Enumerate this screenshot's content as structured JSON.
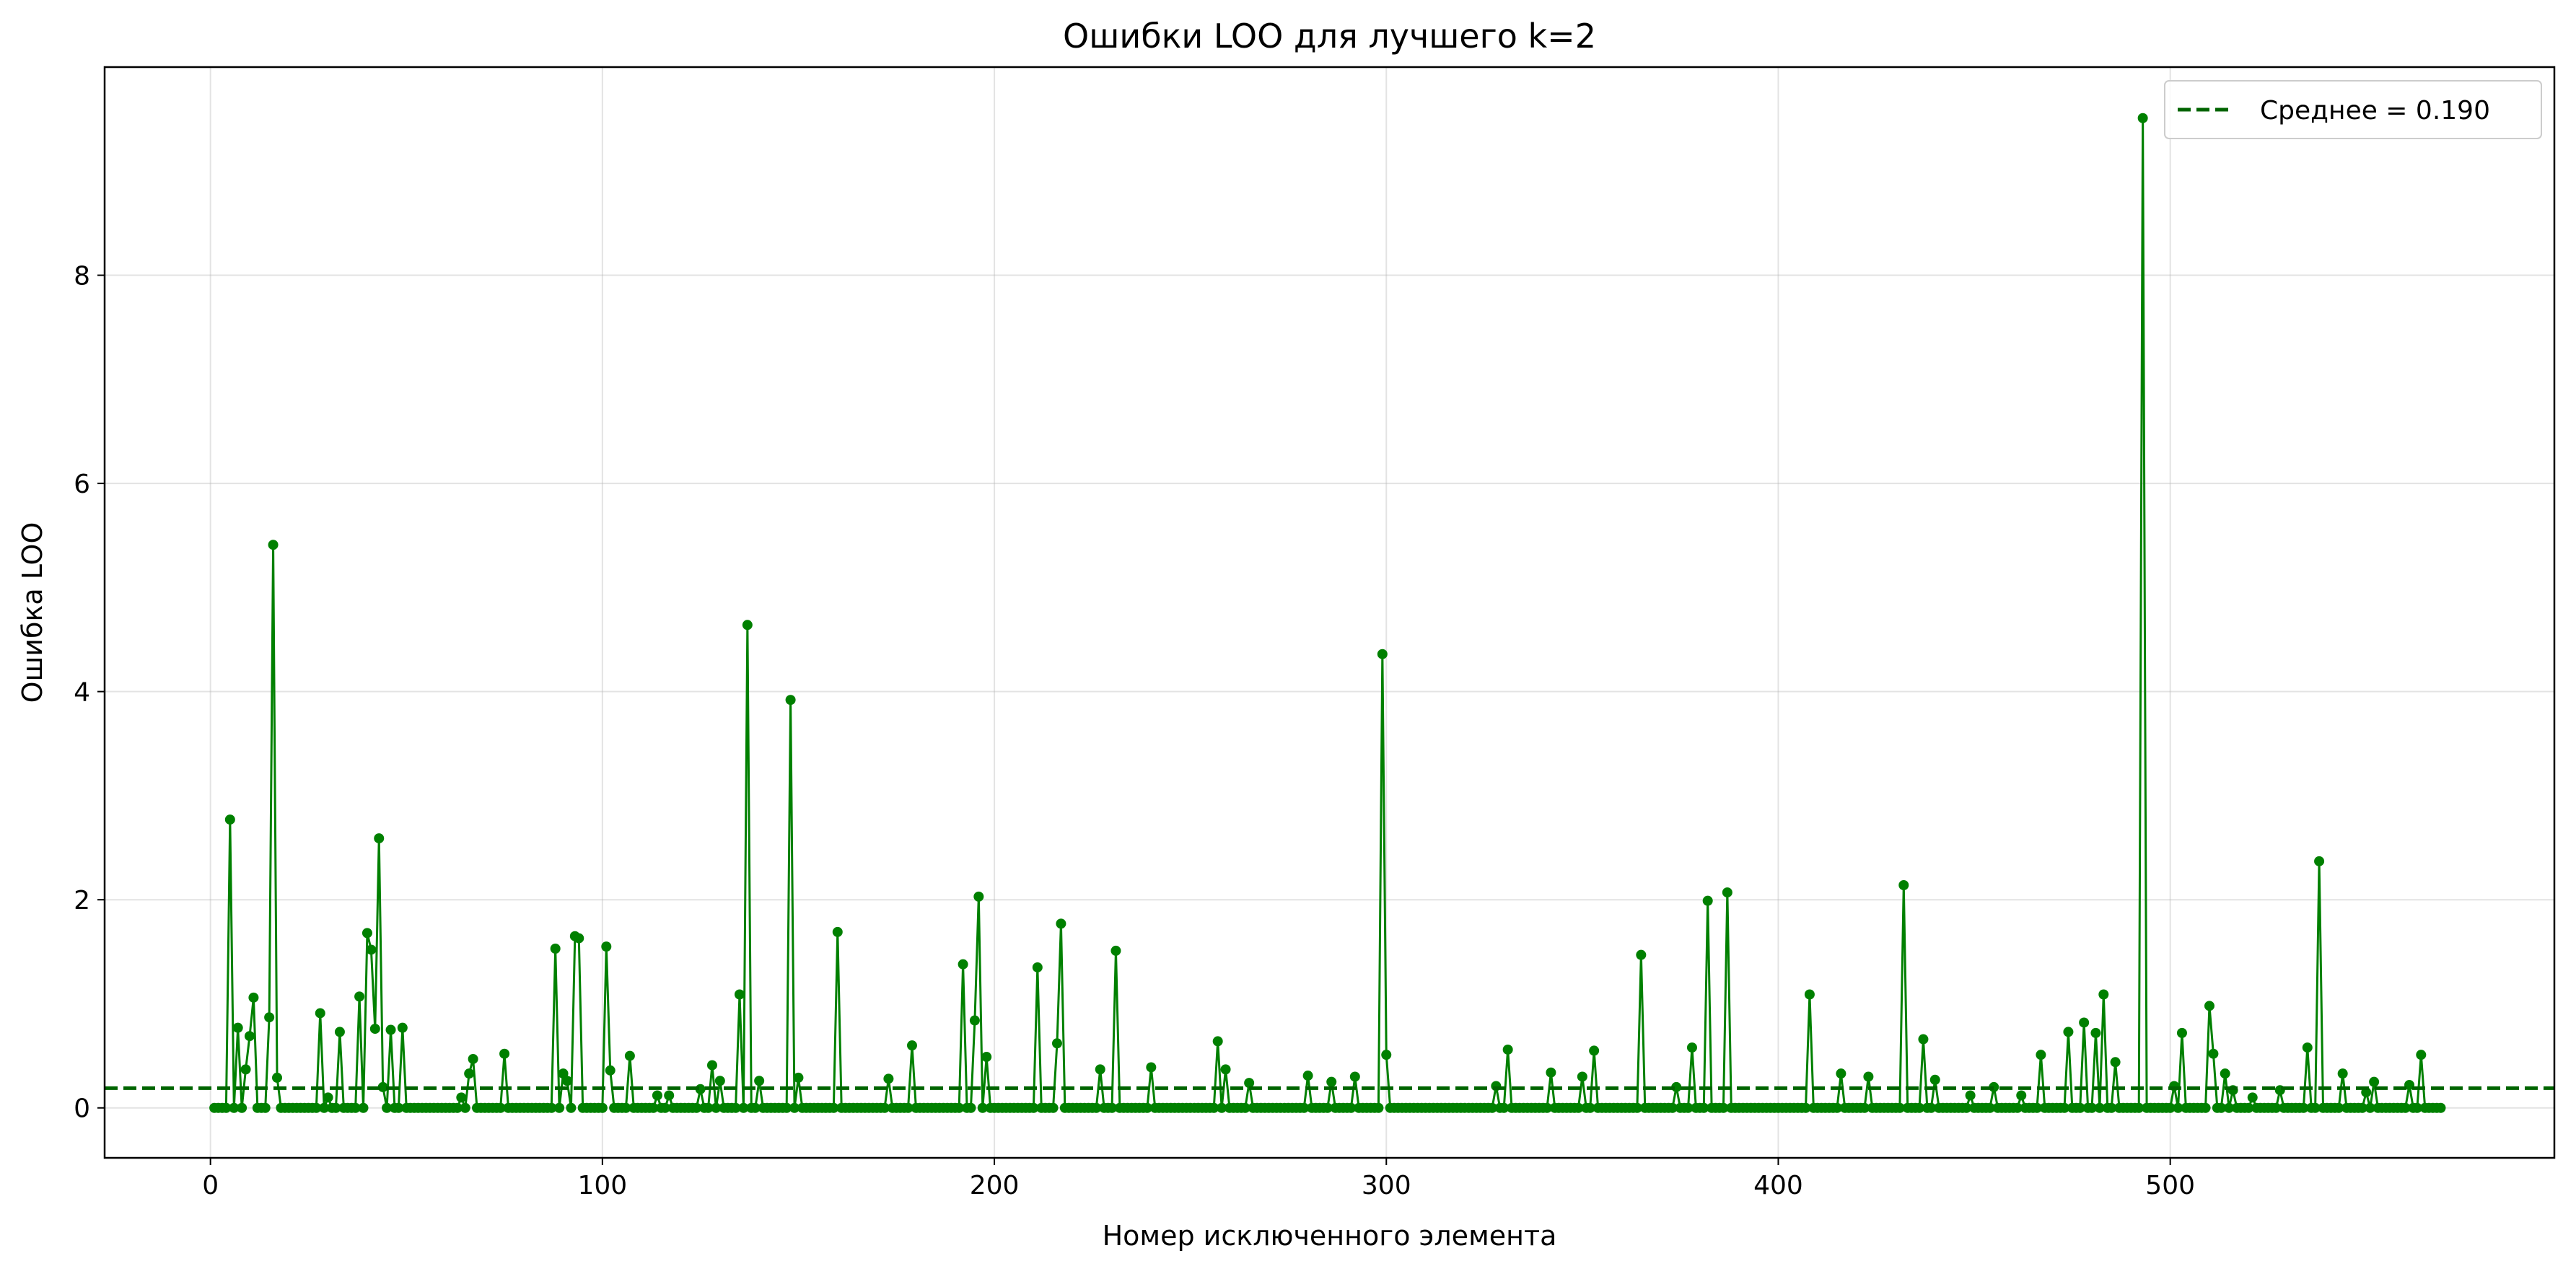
{
  "chart_data": {
    "type": "line",
    "title": "Ошибки LOO для лучшего k=2",
    "xlabel": "Номер исключенного элемента",
    "ylabel": "Ошибка LOO",
    "xlim": [
      -27,
      598
    ],
    "ylim": [
      -0.48,
      10.0
    ],
    "xticks": [
      0,
      100,
      200,
      300,
      400,
      500
    ],
    "yticks": [
      0,
      2,
      4,
      6,
      8
    ],
    "grid": true,
    "legend_position": "top-right",
    "line_color": "#008000",
    "mean_line": {
      "label": "Среднее = 0.190",
      "value": 0.19,
      "color": "#006400",
      "style": "dashed"
    },
    "series": [
      {
        "n_points": 569,
        "default_value": 0.0,
        "values_by_index": {
          "4": 2.77,
          "6": 0.77,
          "8": 0.37,
          "9": 0.69,
          "10": 1.06,
          "14": 0.87,
          "15": 5.41,
          "16": 0.29,
          "27": 0.91,
          "29": 0.1,
          "32": 0.73,
          "37": 1.07,
          "39": 1.68,
          "40": 1.52,
          "41": 0.76,
          "42": 2.59,
          "43": 0.2,
          "45": 0.75,
          "48": 0.77,
          "63": 0.1,
          "65": 0.33,
          "66": 0.47,
          "74": 0.52,
          "87": 1.53,
          "89": 0.33,
          "90": 0.26,
          "92": 1.65,
          "93": 1.63,
          "100": 1.55,
          "101": 0.36,
          "106": 0.5,
          "113": 0.12,
          "116": 0.12,
          "124": 0.18,
          "127": 0.41,
          "129": 0.26,
          "134": 1.09,
          "136": 4.64,
          "139": 0.26,
          "147": 3.92,
          "149": 0.29,
          "159": 1.69,
          "172": 0.28,
          "178": 0.6,
          "191": 1.38,
          "194": 0.84,
          "195": 2.03,
          "197": 0.49,
          "210": 1.35,
          "215": 0.62,
          "216": 1.77,
          "226": 0.37,
          "230": 1.51,
          "239": 0.39,
          "256": 0.64,
          "258": 0.37,
          "264": 0.24,
          "279": 0.31,
          "285": 0.25,
          "291": 0.3,
          "298": 4.36,
          "299": 0.51,
          "327": 0.21,
          "330": 0.56,
          "341": 0.34,
          "349": 0.3,
          "352": 0.55,
          "364": 1.47,
          "373": 0.2,
          "377": 0.58,
          "381": 1.99,
          "386": 2.07,
          "407": 1.09,
          "415": 0.33,
          "422": 0.3,
          "431": 2.14,
          "436": 0.66,
          "439": 0.27,
          "448": 0.12,
          "454": 0.2,
          "461": 0.12,
          "466": 0.51,
          "473": 0.73,
          "477": 0.82,
          "480": 0.72,
          "482": 1.09,
          "485": 0.44,
          "492": 9.51,
          "500": 0.21,
          "502": 0.72,
          "509": 0.98,
          "510": 0.52,
          "513": 0.33,
          "515": 0.17,
          "520": 0.1,
          "527": 0.17,
          "534": 0.58,
          "537": 2.37,
          "543": 0.33,
          "549": 0.15,
          "551": 0.25,
          "560": 0.22,
          "563": 0.51
        }
      }
    ]
  }
}
